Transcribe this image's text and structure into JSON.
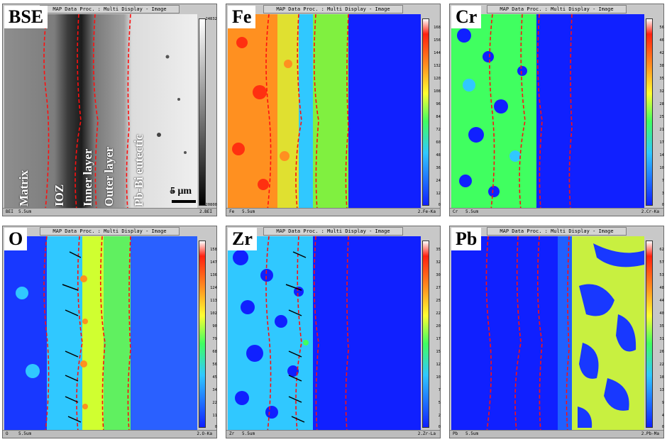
{
  "window_title": "MAP Data Proc. : Multi Display - Image",
  "panels": [
    {
      "element": "BSE",
      "footer_left": "BEI",
      "footer_mid": "5.5um",
      "footer_right": "2.BEI",
      "ticks": [
        "24832",
        "20800"
      ]
    },
    {
      "element": "Fe",
      "footer_left": "Fe",
      "footer_mid": "5.5um",
      "footer_right": "2.Fe-Ka",
      "ticks": [
        "168",
        "156",
        "144",
        "132",
        "120",
        "108",
        "96",
        "84",
        "72",
        "60",
        "48",
        "36",
        "24",
        "12",
        "0"
      ]
    },
    {
      "element": "Cr",
      "footer_left": "Cr",
      "footer_mid": "5.5um",
      "footer_right": "2.Cr-Ka",
      "ticks": [
        "56",
        "46",
        "42",
        "38",
        "35",
        "32",
        "28",
        "25",
        "21",
        "17",
        "14",
        "10",
        "7",
        "3",
        "0"
      ]
    },
    {
      "element": "O",
      "footer_left": "O",
      "footer_mid": "5.5um",
      "footer_right": "2.O-Ka",
      "ticks": [
        "158",
        "147",
        "136",
        "124",
        "113",
        "102",
        "90",
        "79",
        "68",
        "56",
        "45",
        "34",
        "22",
        "11",
        "0"
      ]
    },
    {
      "element": "Zr",
      "footer_left": "Zr",
      "footer_mid": "5.5um",
      "footer_right": "2.Zr-La",
      "ticks": [
        "35",
        "32",
        "30",
        "27",
        "25",
        "22",
        "20",
        "17",
        "15",
        "12",
        "10",
        "7",
        "5",
        "2",
        "0"
      ]
    },
    {
      "element": "Pb",
      "footer_left": "Pb",
      "footer_mid": "5.5um",
      "footer_right": "2.Pb-Ma",
      "ticks": [
        "62",
        "57",
        "53",
        "48",
        "44",
        "40",
        "35",
        "31",
        "26",
        "22",
        "18",
        "13",
        "9",
        "4",
        "0"
      ]
    }
  ],
  "bse_labels": {
    "matrix": "Matrix",
    "ioz": "IOZ",
    "inner": "Inner layer",
    "outer": "Outer layer",
    "eutectic": "Pb-Bi eutectic",
    "scale": "5 μm"
  },
  "colors": {
    "blue": "#1020ff",
    "cyan": "#30c8ff",
    "green": "#40ff60",
    "yellow": "#d0ff30",
    "orange": "#ff9020",
    "red": "#ff2010",
    "boundary": "#ff1010"
  }
}
